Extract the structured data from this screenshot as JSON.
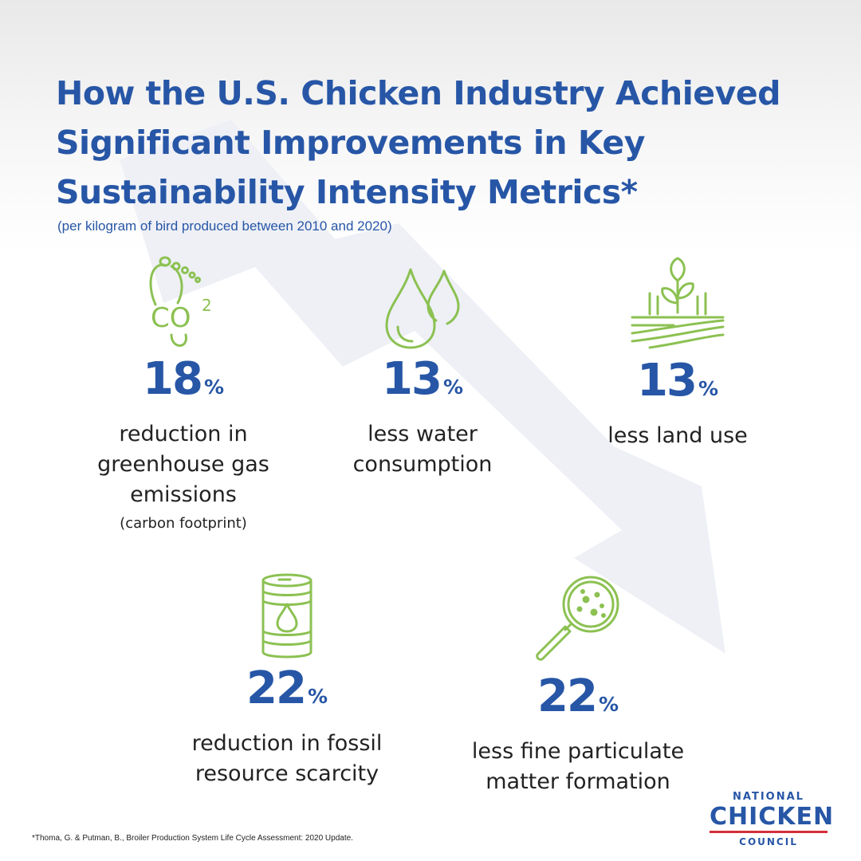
{
  "header": {
    "title": "How the U.S. Chicken Industry Achieved Significant Improvements in Key Sustainability Intensity Metrics*",
    "subtitle": "(per kilogram of bird produced between 2010 and 2020)"
  },
  "metrics": [
    {
      "icon": "footprint-co2-icon",
      "value": "18",
      "unit": "%",
      "description": "reduction in greenhouse gas emissions",
      "note": "(carbon footprint)"
    },
    {
      "icon": "water-drops-icon",
      "value": "13",
      "unit": "%",
      "description": "less water consumption"
    },
    {
      "icon": "sprout-field-icon",
      "value": "13",
      "unit": "%",
      "description": "less land use"
    },
    {
      "icon": "oil-barrel-icon",
      "value": "22",
      "unit": "%",
      "description": "reduction in fossil resource scarcity"
    },
    {
      "icon": "magnifier-particles-icon",
      "value": "22",
      "unit": "%",
      "description": "less fine particulate matter formation"
    }
  ],
  "footnote": "*Thoma, G. & Putman, B., Broiler Production System Life Cycle Assessment: 2020 Update.",
  "logo": {
    "line1": "NATIONAL",
    "line2": "CHICKEN",
    "line3": "COUNCIL"
  },
  "colors": {
    "title": "#2756a6",
    "icon": "#8cc152",
    "text": "#222222",
    "arrow": "#eef0f6",
    "logo_rule": "#d32f3a"
  }
}
